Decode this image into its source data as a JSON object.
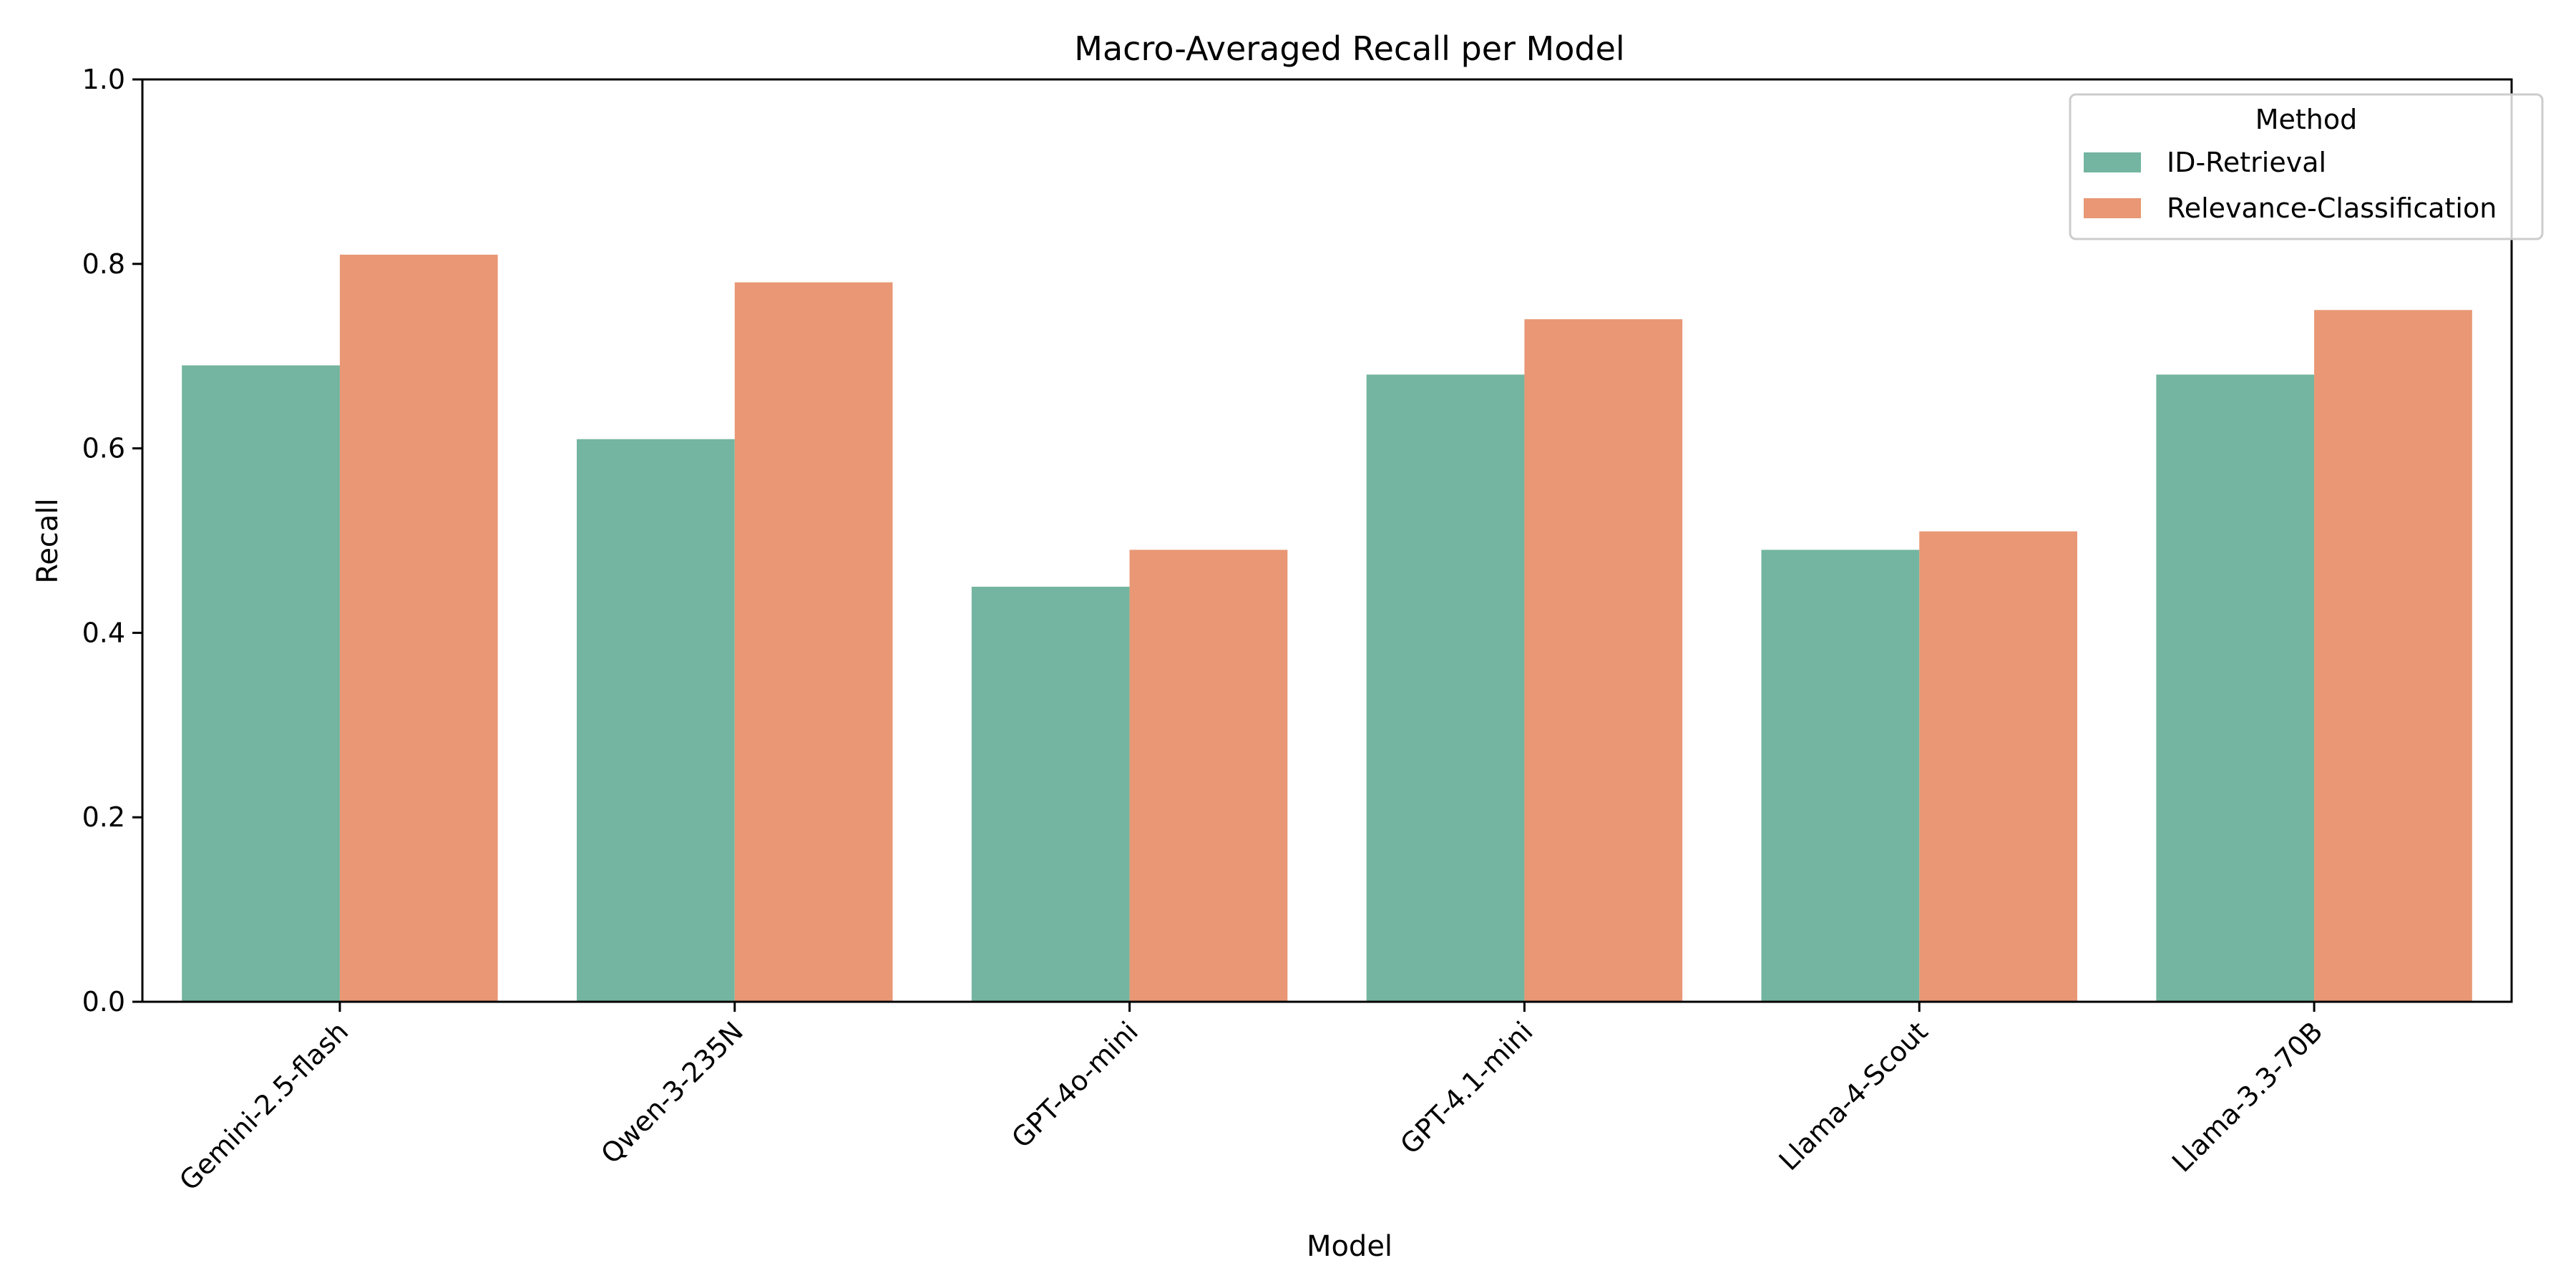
{
  "chart_data": {
    "type": "bar",
    "title": "Macro-Averaged Recall per Model",
    "xlabel": "Model",
    "ylabel": "Recall",
    "ylim": [
      0,
      1.0
    ],
    "yticks": [
      "0.0",
      "0.2",
      "0.4",
      "0.6",
      "0.8",
      "1.0"
    ],
    "grid": false,
    "legend": {
      "title": "Method",
      "placement": "top-right"
    },
    "categories": [
      "Gemini-2.5-flash",
      "Qwen-3-235N",
      "GPT-4o-mini",
      "GPT-4.1-mini",
      "Llama-4-Scout",
      "Llama-3.3-70B"
    ],
    "series": [
      {
        "name": "ID-Retrieval",
        "color": "#73b5a0",
        "values": [
          0.69,
          0.61,
          0.45,
          0.68,
          0.49,
          0.68
        ]
      },
      {
        "name": "Relevance-Classification",
        "color": "#e99774",
        "values": [
          0.81,
          0.78,
          0.49,
          0.74,
          0.51,
          0.75
        ]
      }
    ]
  }
}
